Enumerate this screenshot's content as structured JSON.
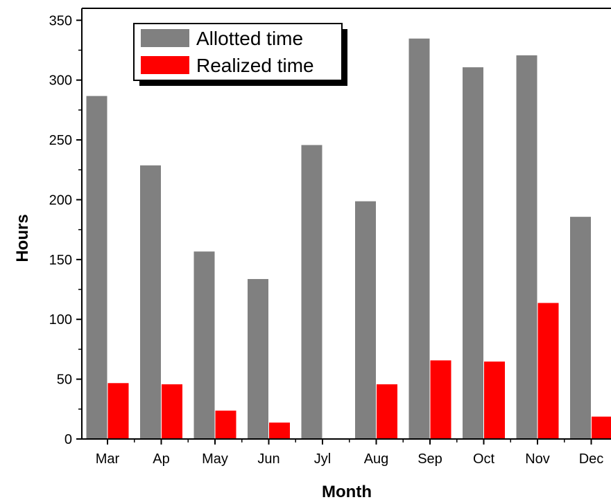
{
  "chart_data": {
    "type": "bar",
    "title": "",
    "xlabel": "Month",
    "ylabel": "Hours",
    "categories": [
      "Mar",
      "Ap",
      "May",
      "Jun",
      "Jyl",
      "Aug",
      "Sep",
      "Oct",
      "Nov",
      "Dec"
    ],
    "series": [
      {
        "name": "Allotted time",
        "color": "#808080",
        "values": [
          287,
          229,
          157,
          134,
          246,
          199,
          335,
          311,
          321,
          186
        ]
      },
      {
        "name": "Realized time",
        "color": "#ff0000",
        "values": [
          47,
          46,
          24,
          14,
          0,
          46,
          66,
          65,
          114,
          19
        ]
      }
    ],
    "ylim": [
      0,
      360
    ],
    "yticks": [
      0,
      50,
      100,
      150,
      200,
      250,
      300,
      350
    ],
    "grid": false,
    "legend_position": "top-left"
  }
}
